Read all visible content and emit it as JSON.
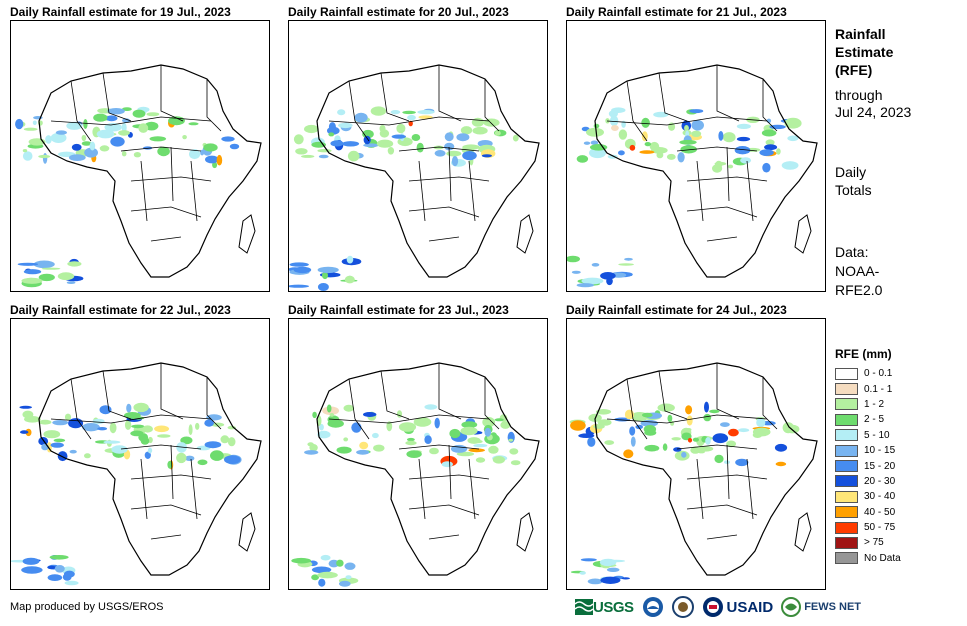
{
  "panels": [
    {
      "title": "Daily Rainfall estimate for 19 Jul., 2023"
    },
    {
      "title": "Daily Rainfall estimate for 20 Jul., 2023"
    },
    {
      "title": "Daily Rainfall estimate for 21 Jul., 2023"
    },
    {
      "title": "Daily Rainfall estimate for 22 Jul., 2023"
    },
    {
      "title": "Daily Rainfall estimate for 23 Jul., 2023"
    },
    {
      "title": "Daily Rainfall estimate for 24 Jul., 2023"
    }
  ],
  "side": {
    "line1": "Rainfall",
    "line2": "Estimate",
    "line3": "(RFE)",
    "line4": "through",
    "line5": "Jul 24, 2023",
    "line6": "Daily",
    "line7": "Totals",
    "line8": "Data:",
    "line9": "NOAA-",
    "line10": "RFE2.0"
  },
  "legend": {
    "title": "RFE (mm)",
    "items": [
      {
        "label": "0 - 0.1",
        "color": "#ffffff"
      },
      {
        "label": "0.1 - 1",
        "color": "#f5dcc0"
      },
      {
        "label": "1 - 2",
        "color": "#b4f0a0"
      },
      {
        "label": "2 - 5",
        "color": "#6edc6e"
      },
      {
        "label": "5 - 10",
        "color": "#b4eef5"
      },
      {
        "label": "10 - 15",
        "color": "#78b4f0"
      },
      {
        "label": "15 - 20",
        "color": "#468cf0"
      },
      {
        "label": "20 - 30",
        "color": "#1450dc"
      },
      {
        "label": "30 - 40",
        "color": "#ffe678"
      },
      {
        "label": "40 - 50",
        "color": "#ffa000"
      },
      {
        "label": "50 - 75",
        "color": "#ff3c00"
      },
      {
        "label": "> 75",
        "color": "#a01414"
      },
      {
        "label": "No Data",
        "color": "#969696"
      }
    ]
  },
  "credit": "Map produced by USGS/EROS",
  "logos": {
    "usgs": "USGS",
    "usaid": "USAID",
    "fews": "FEWS NET"
  }
}
